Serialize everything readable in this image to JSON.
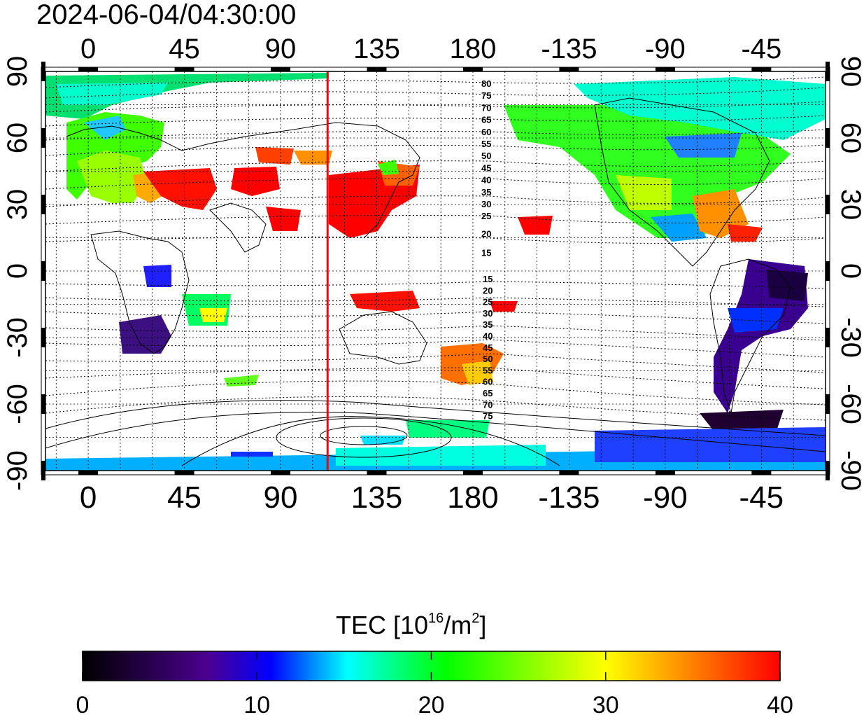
{
  "title": "2024-06-04/04:30:00",
  "map": {
    "top_lon_labels": [
      "0",
      "45",
      "90",
      "135",
      "180",
      "-135",
      "-90",
      "-45"
    ],
    "bottom_lon_labels": [
      "0",
      "45",
      "90",
      "135",
      "180",
      "-135",
      "-90",
      "-45"
    ],
    "lat_labels": [
      "90",
      "60",
      "30",
      "0",
      "-30",
      "-60",
      "-90"
    ],
    "lon_values": [
      0,
      45,
      90,
      135,
      180,
      225,
      270,
      315
    ],
    "lat_values": [
      90,
      60,
      30,
      0,
      -30,
      -60,
      -90
    ],
    "lon_range": [
      -20,
      345
    ],
    "lat_range": [
      -90,
      90
    ],
    "meridian_lon": 112,
    "contour_labels_north": [
      "80",
      "75",
      "70",
      "65",
      "60",
      "55",
      "50",
      "45",
      "40",
      "35",
      "30",
      "25",
      "20",
      "15"
    ],
    "contour_labels_south": [
      "15",
      "20",
      "25",
      "30",
      "35",
      "40",
      "45",
      "50",
      "55",
      "60",
      "65",
      "70",
      "75"
    ],
    "colors": {
      "meridian": "#ff0000",
      "grid": "#000000"
    }
  },
  "colorbar": {
    "label_main": "TEC  [10",
    "label_sup1": "16",
    "label_mid": "/m",
    "label_sup2": "2",
    "label_end": "]",
    "ticks": [
      "0",
      "10",
      "20",
      "30",
      "40"
    ],
    "tick_values": [
      0,
      10,
      20,
      30,
      40
    ],
    "range": [
      0,
      40
    ],
    "stops": [
      "#000000",
      "#5a0090",
      "#0000ff",
      "#00ffff",
      "#00ff00",
      "#ffff00",
      "#ff0000"
    ]
  }
}
